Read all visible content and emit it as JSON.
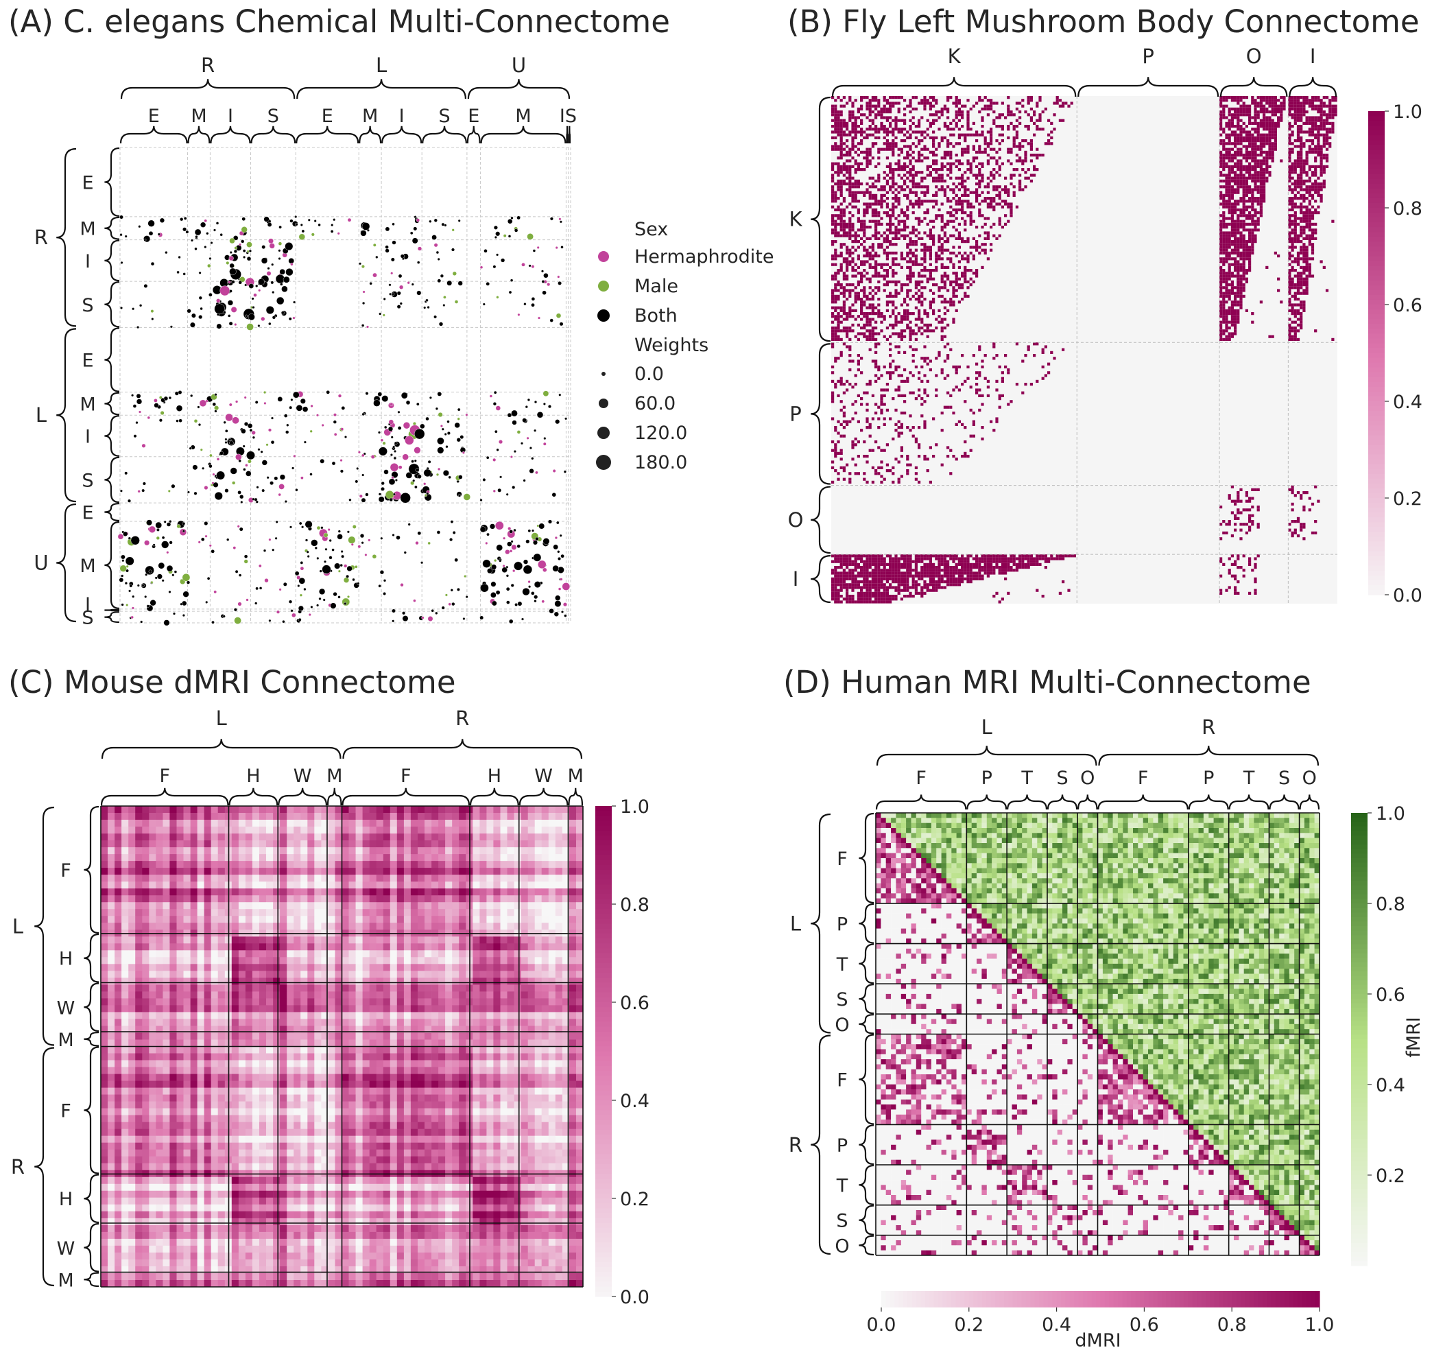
{
  "figure_colors": {
    "magenta_high": "#8e0152",
    "magenta_low": "#f7f7f7",
    "green_high": "#276419",
    "green_low": "#f7f7f7",
    "hermaphrodite": "#c1429a",
    "male": "#7fae3f",
    "both": "#000000",
    "missing": "#f5f5f5"
  },
  "chart_data": [
    {
      "id": "A",
      "type": "scatter",
      "title": "(A) C. elegans Chemical Multi-Connectome",
      "top_groups": [
        "R",
        "L",
        "U"
      ],
      "top_sub": [
        "E",
        "M",
        "I",
        "S",
        "E",
        "M",
        "I",
        "S",
        "E",
        "M",
        "I",
        "S"
      ],
      "top_sub_fractions": [
        0.15,
        0.05,
        0.09,
        0.1,
        0.14,
        0.05,
        0.09,
        0.1,
        0.03,
        0.19,
        0.005,
        0.005
      ],
      "left_groups": [
        "R",
        "L",
        "U"
      ],
      "left_sub": [
        "E",
        "M",
        "I",
        "S",
        "E",
        "M",
        "I",
        "S",
        "E",
        "M",
        "I",
        "S"
      ],
      "left_sub_fractions": [
        0.15,
        0.05,
        0.09,
        0.1,
        0.14,
        0.05,
        0.09,
        0.1,
        0.04,
        0.19,
        0.005,
        0.025
      ],
      "legend": {
        "sex_title": "Sex",
        "sex": [
          {
            "label": "Hermaphrodite",
            "color": "#c1429a"
          },
          {
            "label": "Male",
            "color": "#7fae3f"
          },
          {
            "label": "Both",
            "color": "#000000"
          }
        ],
        "weights_title": "Weights",
        "weights": [
          "0.0",
          "60.0",
          "120.0",
          "180.0"
        ]
      },
      "active_blocks": [
        [
          1,
          0,
          0.5
        ],
        [
          1,
          1,
          0.6
        ],
        [
          1,
          2,
          0.5
        ],
        [
          1,
          3,
          0.4
        ],
        [
          1,
          4,
          0.5
        ],
        [
          1,
          5,
          0.6
        ],
        [
          1,
          6,
          0.5
        ],
        [
          1,
          7,
          0.4
        ],
        [
          1,
          9,
          0.4
        ],
        [
          2,
          0,
          0.15
        ],
        [
          2,
          1,
          0.3
        ],
        [
          2,
          2,
          0.9
        ],
        [
          2,
          3,
          0.7
        ],
        [
          2,
          5,
          0.3
        ],
        [
          2,
          6,
          0.4
        ],
        [
          2,
          7,
          0.2
        ],
        [
          2,
          9,
          0.25
        ],
        [
          3,
          0,
          0.15
        ],
        [
          3,
          1,
          0.3
        ],
        [
          3,
          2,
          0.9
        ],
        [
          3,
          3,
          0.8
        ],
        [
          3,
          5,
          0.3
        ],
        [
          3,
          6,
          0.4
        ],
        [
          3,
          7,
          0.3
        ],
        [
          3,
          9,
          0.25
        ],
        [
          5,
          0,
          0.6
        ],
        [
          5,
          1,
          0.5
        ],
        [
          5,
          2,
          0.5
        ],
        [
          5,
          3,
          0.3
        ],
        [
          5,
          4,
          0.4
        ],
        [
          5,
          5,
          0.6
        ],
        [
          5,
          6,
          0.5
        ],
        [
          5,
          7,
          0.3
        ],
        [
          5,
          9,
          0.4
        ],
        [
          6,
          0,
          0.15
        ],
        [
          6,
          1,
          0.3
        ],
        [
          6,
          2,
          0.7
        ],
        [
          6,
          3,
          0.4
        ],
        [
          6,
          4,
          0.2
        ],
        [
          6,
          5,
          0.3
        ],
        [
          6,
          6,
          0.9
        ],
        [
          6,
          7,
          0.5
        ],
        [
          6,
          9,
          0.25
        ],
        [
          7,
          0,
          0.15
        ],
        [
          7,
          1,
          0.3
        ],
        [
          7,
          2,
          0.7
        ],
        [
          7,
          3,
          0.4
        ],
        [
          7,
          4,
          0.2
        ],
        [
          7,
          5,
          0.3
        ],
        [
          7,
          6,
          0.9
        ],
        [
          7,
          7,
          0.6
        ],
        [
          7,
          9,
          0.25
        ],
        [
          9,
          0,
          0.7
        ],
        [
          9,
          1,
          0.2
        ],
        [
          9,
          2,
          0.2
        ],
        [
          9,
          3,
          0.2
        ],
        [
          9,
          4,
          0.7
        ],
        [
          9,
          5,
          0.2
        ],
        [
          9,
          6,
          0.2
        ],
        [
          9,
          7,
          0.2
        ],
        [
          9,
          9,
          0.7
        ],
        [
          10,
          2,
          0.4
        ],
        [
          10,
          3,
          0.3
        ],
        [
          10,
          6,
          0.4
        ],
        [
          10,
          7,
          0.3
        ],
        [
          10,
          9,
          0.3
        ],
        [
          11,
          0,
          0.4
        ],
        [
          11,
          2,
          0.5
        ],
        [
          11,
          3,
          0.4
        ],
        [
          11,
          4,
          0.3
        ],
        [
          11,
          6,
          0.5
        ],
        [
          11,
          7,
          0.4
        ],
        [
          11,
          9,
          0.4
        ]
      ]
    },
    {
      "id": "B",
      "type": "heatmap",
      "title": "(B) Fly Left Mushroom Body Connectome",
      "top_groups": [
        "K",
        "P",
        "O",
        "I"
      ],
      "left_groups": [
        "K",
        "P",
        "O",
        "I"
      ],
      "group_fractions": [
        0.5,
        0.29,
        0.14,
        0.1
      ],
      "active_blocks": [
        [
          0,
          0,
          0.55,
          "triangle"
        ],
        [
          0,
          2,
          0.75,
          "left-full"
        ],
        [
          0,
          3,
          0.7,
          "left-full"
        ],
        [
          1,
          0,
          0.18,
          "triangle"
        ],
        [
          2,
          2,
          0.25,
          "top"
        ],
        [
          2,
          3,
          0.2,
          "top"
        ],
        [
          3,
          0,
          0.85,
          "left-full"
        ],
        [
          3,
          2,
          0.2,
          "top"
        ]
      ],
      "colorbar": {
        "min": 0.0,
        "max": 1.0,
        "ticks": [
          "0.0",
          "0.2",
          "0.4",
          "0.6",
          "0.8",
          "1.0"
        ]
      }
    },
    {
      "id": "C",
      "type": "heatmap",
      "title": "(C) Mouse dMRI Connectome",
      "top_groups": [
        "L",
        "R"
      ],
      "top_sub": [
        "F",
        "H",
        "W",
        "M",
        "F",
        "H",
        "W",
        "M"
      ],
      "left_groups": [
        "L",
        "R"
      ],
      "left_sub": [
        "F",
        "H",
        "W",
        "M",
        "F",
        "H",
        "W",
        "M"
      ],
      "sub_fractions": [
        0.26,
        0.1,
        0.1,
        0.03,
        0.26,
        0.1,
        0.1,
        0.03
      ],
      "block_means": [
        [
          0.55,
          0.25,
          0.4,
          0.5,
          0.55,
          0.2,
          0.35,
          0.45
        ],
        [
          0.3,
          0.7,
          0.45,
          0.5,
          0.25,
          0.6,
          0.4,
          0.45
        ],
        [
          0.4,
          0.45,
          0.55,
          0.55,
          0.35,
          0.35,
          0.5,
          0.5
        ],
        [
          0.5,
          0.45,
          0.5,
          0.7,
          0.45,
          0.4,
          0.45,
          0.6
        ],
        [
          0.55,
          0.2,
          0.35,
          0.45,
          0.6,
          0.25,
          0.4,
          0.5
        ],
        [
          0.2,
          0.6,
          0.4,
          0.4,
          0.25,
          0.7,
          0.45,
          0.5
        ],
        [
          0.35,
          0.35,
          0.5,
          0.45,
          0.4,
          0.45,
          0.55,
          0.55
        ],
        [
          0.45,
          0.4,
          0.45,
          0.55,
          0.5,
          0.45,
          0.5,
          0.7
        ]
      ],
      "colorbar": {
        "min": 0.0,
        "max": 1.0,
        "ticks": [
          "0.0",
          "0.2",
          "0.4",
          "0.6",
          "0.8",
          "1.0"
        ]
      }
    },
    {
      "id": "D",
      "type": "heatmap",
      "title": "(D) Human MRI Multi-Connectome",
      "top_groups": [
        "L",
        "R"
      ],
      "top_sub": [
        "F",
        "P",
        "T",
        "S",
        "O",
        "F",
        "P",
        "T",
        "S",
        "O"
      ],
      "left_groups": [
        "L",
        "R"
      ],
      "left_sub": [
        "F",
        "P",
        "T",
        "S",
        "O",
        "F",
        "P",
        "T",
        "S",
        "O"
      ],
      "sub_counts": [
        9,
        4,
        4,
        3,
        2,
        9,
        4,
        4,
        3,
        2
      ],
      "colorbar_right": {
        "label": "fMRI",
        "min": 0.0,
        "max": 1.0,
        "ticks": [
          "0.2",
          "0.4",
          "0.6",
          "0.8",
          "1.0"
        ]
      },
      "colorbar_bottom": {
        "label": "dMRI",
        "min": 0.0,
        "max": 1.0,
        "ticks": [
          "0.0",
          "0.2",
          "0.4",
          "0.6",
          "0.8",
          "1.0"
        ]
      }
    }
  ]
}
